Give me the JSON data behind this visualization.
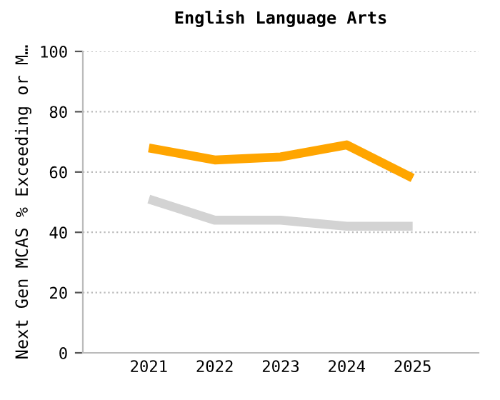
{
  "chart_data": {
    "type": "line",
    "title": "English Language Arts",
    "ylabel": "Next Gen MCAS % Exceeding or M…",
    "categories": [
      "2021",
      "2022",
      "2023",
      "2024",
      "2025"
    ],
    "series": [
      {
        "color": "#ffa500",
        "values": [
          68,
          64,
          65,
          69,
          58
        ]
      },
      {
        "color": "#d3d3d3",
        "values": [
          51,
          44,
          44,
          42,
          42
        ]
      }
    ],
    "ylim": [
      0,
      100
    ],
    "yticks": [
      0,
      20,
      40,
      60,
      80,
      100
    ],
    "grid": "y",
    "legend": false,
    "marker": "none",
    "line_style": "solid"
  }
}
